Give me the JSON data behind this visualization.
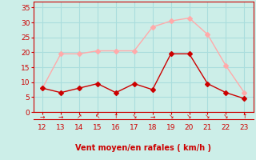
{
  "x": [
    12,
    13,
    14,
    15,
    16,
    17,
    18,
    19,
    20,
    21,
    22,
    23
  ],
  "y_rafales": [
    8,
    19.5,
    19.5,
    20.5,
    20.5,
    20.5,
    28.5,
    30.5,
    31.5,
    26,
    15.5,
    6.5
  ],
  "y_moyen": [
    8,
    6.5,
    8,
    9.5,
    6.5,
    9.5,
    7.5,
    19.5,
    19.5,
    9.5,
    6.5,
    4.5
  ],
  "color_rafales": "#ffaaaa",
  "color_moyen": "#cc0000",
  "background_color": "#cceee8",
  "grid_color": "#aadddd",
  "xlabel": "Vent moyen/en rafales ( km/h )",
  "xlabel_color": "#cc0000",
  "xlabel_fontsize": 7,
  "tick_color": "#cc0000",
  "ylim": [
    0,
    37
  ],
  "yticks": [
    0,
    5,
    10,
    15,
    20,
    25,
    30,
    35
  ],
  "xlim": [
    11.5,
    23.5
  ],
  "xticks": [
    12,
    13,
    14,
    15,
    16,
    17,
    18,
    19,
    20,
    21,
    22,
    23
  ],
  "markersize": 3,
  "linewidth": 1.0,
  "wind_arrows": [
    "→",
    "→",
    "↗",
    "↖",
    "↑",
    "↘",
    "→",
    "↘",
    "↘",
    "↘",
    "↘",
    "↑"
  ]
}
